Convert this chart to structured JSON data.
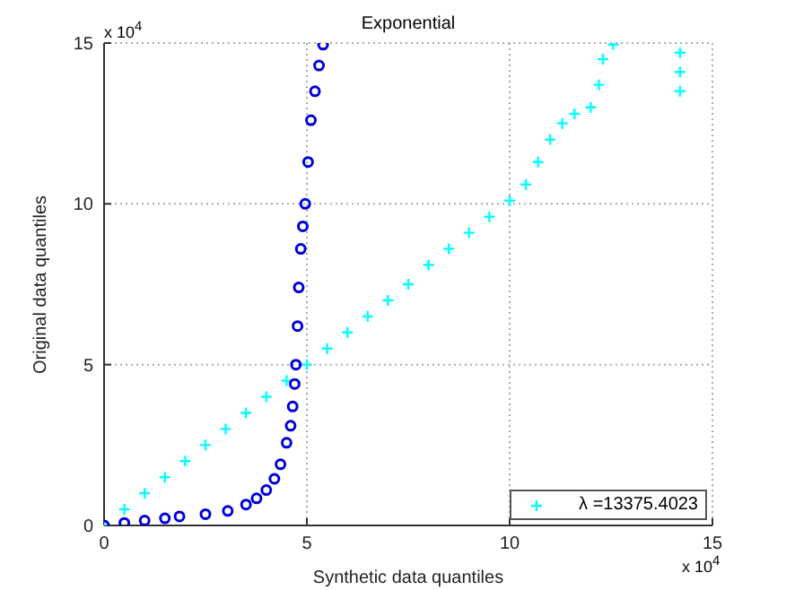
{
  "chart_data": {
    "type": "scatter",
    "title": "Exponential",
    "xlabel": "Synthetic data quantiles",
    "ylabel": "Original data quantiles",
    "annotations": [
      "x 10$^{4}$",
      "x 10$^{4}$"
    ],
    "xlim": [
      0,
      15
    ],
    "ylim": [
      0,
      15
    ],
    "xticks": [
      0,
      5,
      10,
      15
    ],
    "yticks": [
      0,
      5,
      10,
      15
    ],
    "grid": true,
    "legend": "bottom right",
    "series": [
      {
        "name": "λ =13375.4023",
        "color": "#00ffff",
        "marker": "cross",
        "x": [
          0,
          0.5,
          1,
          1.5,
          2,
          2.5,
          3,
          3.5,
          4,
          4.5,
          5,
          5.5,
          6,
          6.5,
          7,
          7.5,
          8,
          8.5,
          9,
          9.5,
          10,
          10.4,
          10.7,
          11,
          11.3,
          11.6,
          12,
          12.2,
          12.3,
          12.55,
          14.2,
          14.2,
          14.2
        ],
        "values": [
          0,
          0.5,
          1,
          1.5,
          2,
          2.5,
          3,
          3.5,
          4,
          4.5,
          5,
          5.5,
          6,
          6.5,
          7,
          7.5,
          8.1,
          8.6,
          9.1,
          9.6,
          10.1,
          10.6,
          11.3,
          12,
          12.5,
          12.8,
          13,
          13.7,
          14.5,
          14.95,
          13.5,
          14.1,
          14.7
        ]
      },
      {
        "color": "#0000dd",
        "marker": "circle",
        "x": [
          0,
          0.5,
          1,
          1.5,
          1.86,
          2.5,
          3.05,
          3.5,
          3.76,
          4,
          4.2,
          4.35,
          4.5,
          4.6,
          4.65,
          4.7,
          4.73,
          4.77,
          4.8,
          4.85,
          4.9,
          4.96,
          5.03,
          5.1,
          5.2,
          5.3,
          5.4
        ],
        "values": [
          0,
          0.08,
          0.15,
          0.22,
          0.28,
          0.35,
          0.45,
          0.65,
          0.84,
          1.1,
          1.45,
          1.9,
          2.57,
          3.1,
          3.7,
          4.4,
          5,
          6.2,
          7.4,
          8.6,
          9.3,
          10,
          11.3,
          12.6,
          13.5,
          14.3,
          14.95
        ]
      }
    ]
  }
}
